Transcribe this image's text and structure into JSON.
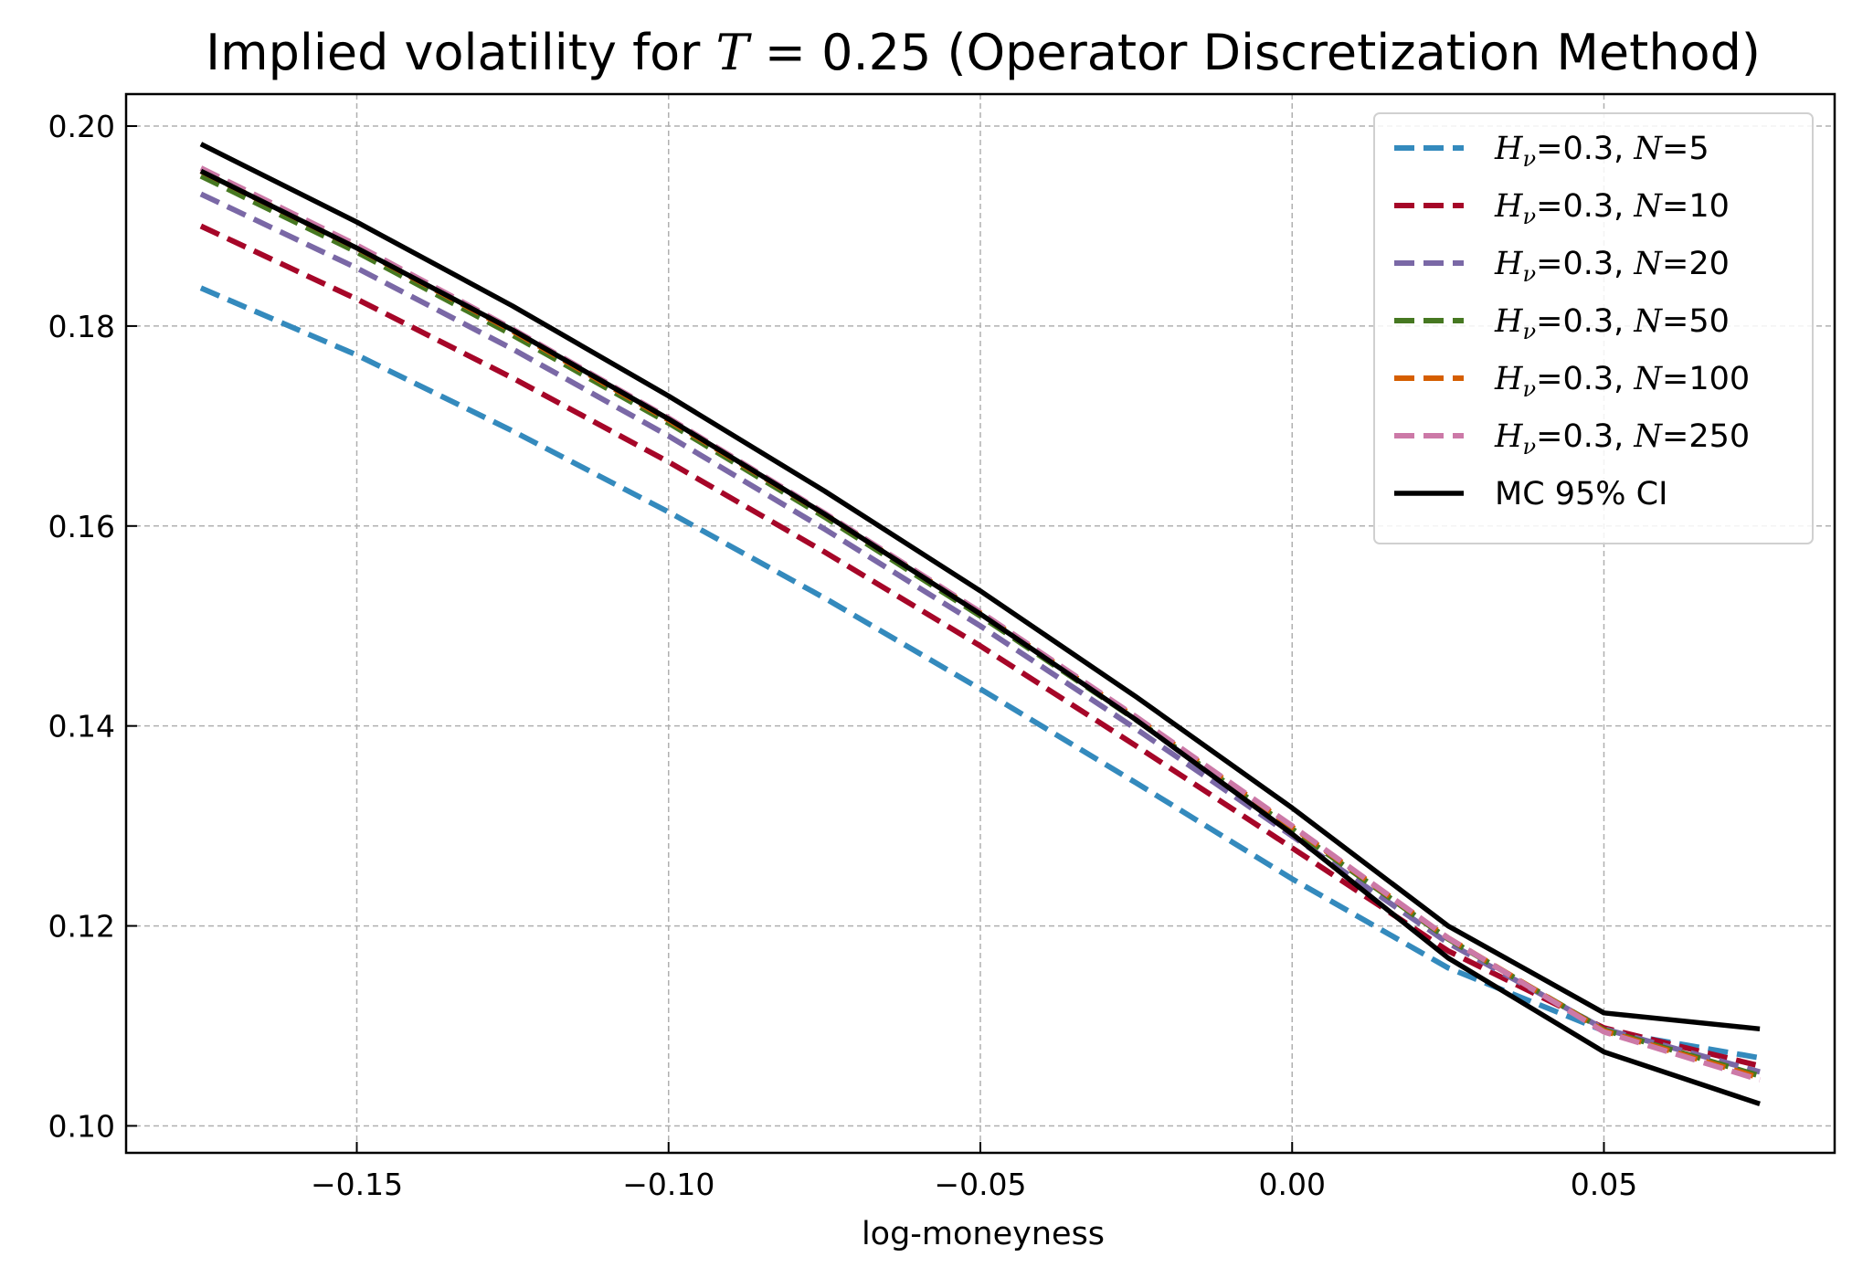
{
  "chart_data": {
    "type": "line",
    "title_prefix": "Implied volatility for ",
    "title_var": "T",
    "title_suffix": " = 0.25 (Operator Discretization Method)",
    "xlabel": "log-moneyness",
    "ylabel": "",
    "xlim": [
      -0.187,
      0.087
    ],
    "ylim": [
      0.0973,
      0.2032
    ],
    "xticks": [
      -0.15,
      -0.1,
      -0.05,
      0.0,
      0.05
    ],
    "xtick_labels": [
      "−0.15",
      "−0.10",
      "−0.05",
      "0.00",
      "0.05"
    ],
    "yticks": [
      0.1,
      0.12,
      0.14,
      0.16,
      0.18,
      0.2
    ],
    "ytick_labels": [
      "0.10",
      "0.12",
      "0.14",
      "0.16",
      "0.18",
      "0.20"
    ],
    "grid": true,
    "legend_position": "top-right",
    "x": [
      -0.175,
      -0.15,
      -0.125,
      -0.1,
      -0.075,
      -0.05,
      -0.025,
      0.0,
      0.025,
      0.05,
      0.075
    ],
    "series": [
      {
        "legend_var1": "H",
        "legend_sub": "ν",
        "legend_mid": "=0.3, ",
        "legend_var2": "N",
        "legend_end": "=5",
        "color": "#348abd",
        "dash": true,
        "values": [
          0.1838,
          0.1771,
          0.1695,
          0.1614,
          0.1528,
          0.1437,
          0.1343,
          0.1247,
          0.1158,
          0.1095,
          0.1068
        ]
      },
      {
        "legend_var1": "H",
        "legend_sub": "ν",
        "legend_mid": "=0.3, ",
        "legend_var2": "N",
        "legend_end": "=10",
        "color": "#a60628",
        "dash": true,
        "values": [
          0.19,
          0.1827,
          0.1748,
          0.1664,
          0.1574,
          0.148,
          0.138,
          0.1278,
          0.1175,
          0.1098,
          0.106
        ]
      },
      {
        "legend_var1": "H",
        "legend_sub": "ν",
        "legend_mid": "=0.3, ",
        "legend_var2": "N",
        "legend_end": "=20",
        "color": "#7a68a6",
        "dash": true,
        "values": [
          0.1932,
          0.1858,
          0.1777,
          0.169,
          0.1597,
          0.15,
          0.1397,
          0.129,
          0.1183,
          0.1097,
          0.1054
        ]
      },
      {
        "legend_var1": "H",
        "legend_sub": "ν",
        "legend_mid": "=0.3, ",
        "legend_var2": "N",
        "legend_end": "=50",
        "color": "#467821",
        "dash": true,
        "values": [
          0.195,
          0.1874,
          0.1791,
          0.1703,
          0.1609,
          0.151,
          0.1406,
          0.1297,
          0.1187,
          0.1096,
          0.105
        ]
      },
      {
        "legend_var1": "H",
        "legend_sub": "ν",
        "legend_mid": "=0.3, ",
        "legend_var2": "N",
        "legend_end": "=100",
        "color": "#d55e00",
        "dash": true,
        "values": [
          0.1955,
          0.1878,
          0.1795,
          0.1706,
          0.1612,
          0.1513,
          0.1408,
          0.1299,
          0.1188,
          0.1095,
          0.1048
        ]
      },
      {
        "legend_var1": "H",
        "legend_sub": "ν",
        "legend_mid": "=0.3, ",
        "legend_var2": "N",
        "legend_end": "=250",
        "color": "#cc79a7",
        "dash": true,
        "values": [
          0.1958,
          0.1881,
          0.1797,
          0.1708,
          0.1613,
          0.1514,
          0.1409,
          0.13,
          0.1188,
          0.1094,
          0.1046
        ]
      },
      {
        "legend_label": "MC 95% CI",
        "color": "#000000",
        "dash": false,
        "values": [
          0.1982,
          0.1904,
          0.182,
          0.173,
          0.1635,
          0.1535,
          0.1429,
          0.1318,
          0.12,
          0.1113,
          0.1097
        ]
      },
      {
        "legend_label": "",
        "color": "#000000",
        "dash": false,
        "values": [
          0.1955,
          0.1878,
          0.1796,
          0.1707,
          0.1612,
          0.1512,
          0.1406,
          0.1292,
          0.1168,
          0.1074,
          0.1022
        ]
      }
    ]
  }
}
